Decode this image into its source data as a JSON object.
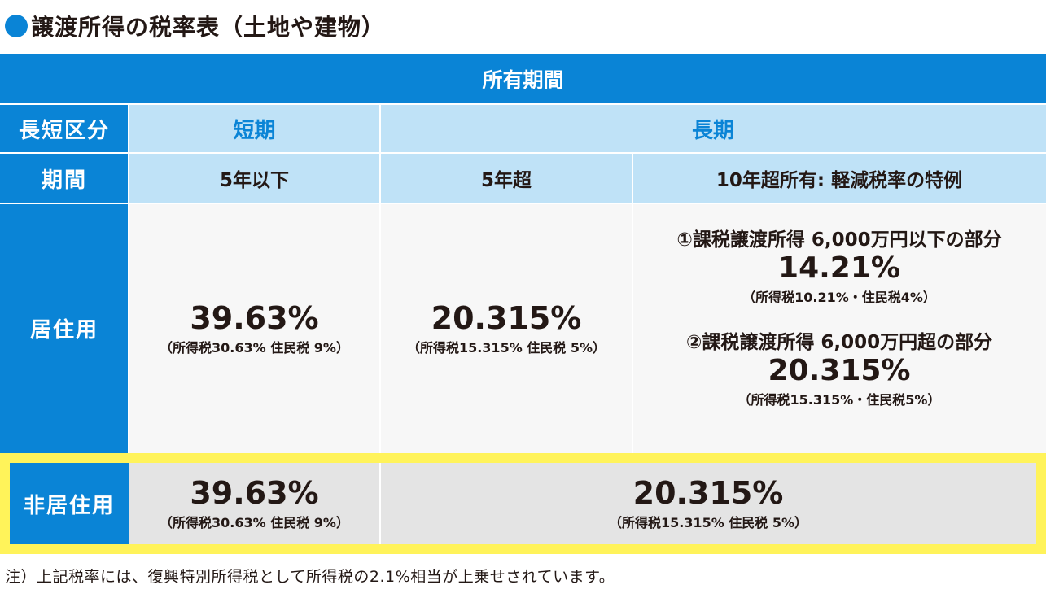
{
  "title": "譲渡所得の税率表（土地や建物）",
  "header": {
    "ownership_period": "所有期間"
  },
  "rows": {
    "category_label": "長短区分",
    "period_label": "期間",
    "residential_label": "居住用",
    "non_residential_label": "非居住用"
  },
  "terms": {
    "short": "短期",
    "long": "長期"
  },
  "periods": {
    "short": "5年以下",
    "long_over5": "5年超",
    "long_over10": "10年超所有: 軽減税率の特例"
  },
  "residential": {
    "short": {
      "rate": "39.63%",
      "detail": "（所得税30.63% 住民税 9%）"
    },
    "long_over5": {
      "rate": "20.315%",
      "detail": "（所得税15.315% 住民税 5%）"
    },
    "long_over10": {
      "part1_label": "①課税譲渡所得 6,000万円以下の部分",
      "part1_rate": "14.21%",
      "part1_detail": "（所得税10.21%・住民税4%）",
      "part2_label": "②課税譲渡所得 6,000万円超の部分",
      "part2_rate": "20.315%",
      "part2_detail": "（所得税15.315%・住民税5%）"
    }
  },
  "non_residential": {
    "short": {
      "rate": "39.63%",
      "detail": "（所得税30.63% 住民税 9%）"
    },
    "long": {
      "rate": "20.315%",
      "detail": "（所得税15.315% 住民税 5%）"
    }
  },
  "note": "注）上記税率には、復興特別所得税として所得税の2.1%相当が上乗せされています。",
  "colors": {
    "blue": "#0a84d6",
    "light_blue": "#bfe2f7",
    "yellow": "#fff35a",
    "gray": "#e4e4e4"
  }
}
